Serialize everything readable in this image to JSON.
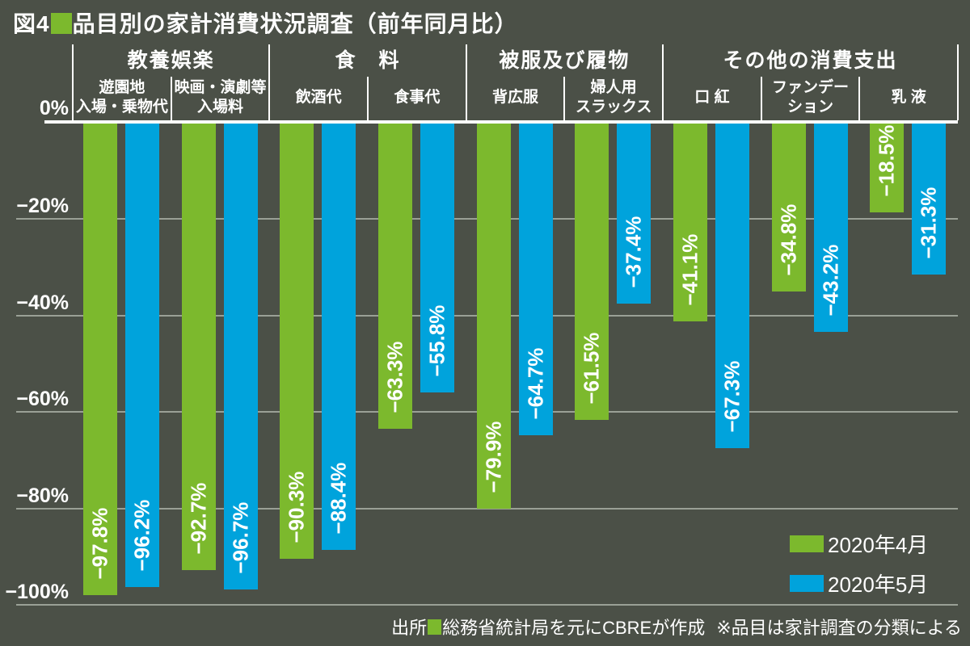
{
  "title": {
    "prefix": "図4",
    "text": "品目別の家計消費状況調査（前年同月比）"
  },
  "colors": {
    "background": "#4b5047",
    "april_green": "#7cb92d",
    "may_blue": "#00a3dc",
    "gridline": "#9aa096",
    "axis_line": "#ffffff",
    "text": "#ffffff"
  },
  "chart_data": {
    "type": "bar",
    "title": "図4 品目別の家計消費状況調査（前年同月比）",
    "xlabel": "",
    "ylabel": "",
    "unit": "%",
    "grid": true,
    "legend_position": "bottom-right",
    "y_axis": {
      "min": -100,
      "max": 0,
      "ticks": [
        {
          "value": 0,
          "label": "0%"
        },
        {
          "value": -20,
          "label": "−20%"
        },
        {
          "value": -40,
          "label": "−40%"
        },
        {
          "value": -60,
          "label": "−60%"
        },
        {
          "value": -80,
          "label": "−80%"
        },
        {
          "value": -100,
          "label": "−100%"
        }
      ]
    },
    "groups": [
      {
        "label": "教養娯楽",
        "span": 2
      },
      {
        "label": "食　料",
        "span": 2
      },
      {
        "label": "被服及び履物",
        "span": 2
      },
      {
        "label": "その他の消費支出",
        "span": 3
      }
    ],
    "categories": [
      {
        "label": "遊園地入場・乗物代",
        "lines": [
          "遊園地",
          "入場・乗物代"
        ]
      },
      {
        "label": "映画・演劇等入場料",
        "lines": [
          "映画・演劇等",
          "入場料"
        ]
      },
      {
        "label": "飲酒代",
        "lines": [
          "飲酒代"
        ]
      },
      {
        "label": "食事代",
        "lines": [
          "食事代"
        ]
      },
      {
        "label": "背広服",
        "lines": [
          "背広服"
        ]
      },
      {
        "label": "婦人用スラックス",
        "lines": [
          "婦人用",
          "スラックス"
        ]
      },
      {
        "label": "口紅",
        "lines": [
          "口 紅"
        ]
      },
      {
        "label": "ファンデーション",
        "lines": [
          "ファンデー",
          "ション"
        ]
      },
      {
        "label": "乳液",
        "lines": [
          "乳 液"
        ]
      }
    ],
    "series": [
      {
        "name": "2020年4月",
        "color": "#7cb92d",
        "values": [
          -97.8,
          -92.7,
          -90.3,
          -63.3,
          -79.9,
          -61.5,
          -41.1,
          -34.8,
          -18.5
        ],
        "bar_labels": [
          "−97.8%",
          "−92.7%",
          "−90.3%",
          "−63.3%",
          "−79.9%",
          "−61.5%",
          "−41.1%",
          "−34.8%",
          "−18.5%"
        ]
      },
      {
        "name": "2020年5月",
        "color": "#00a3dc",
        "values": [
          -96.2,
          -96.7,
          -88.4,
          -55.8,
          -64.7,
          -37.4,
          -67.3,
          -43.2,
          -31.3
        ],
        "bar_labels": [
          "−96.2%",
          "−96.7%",
          "−88.4%",
          "−55.8%",
          "−64.7%",
          "−37.4%",
          "−67.3%",
          "−43.2%",
          "−31.3%"
        ]
      }
    ]
  },
  "footer": {
    "source_prefix": "出所",
    "source_text": "総務省統計局を元にCBREが作成",
    "note": "※品目は家計調査の分類による"
  }
}
